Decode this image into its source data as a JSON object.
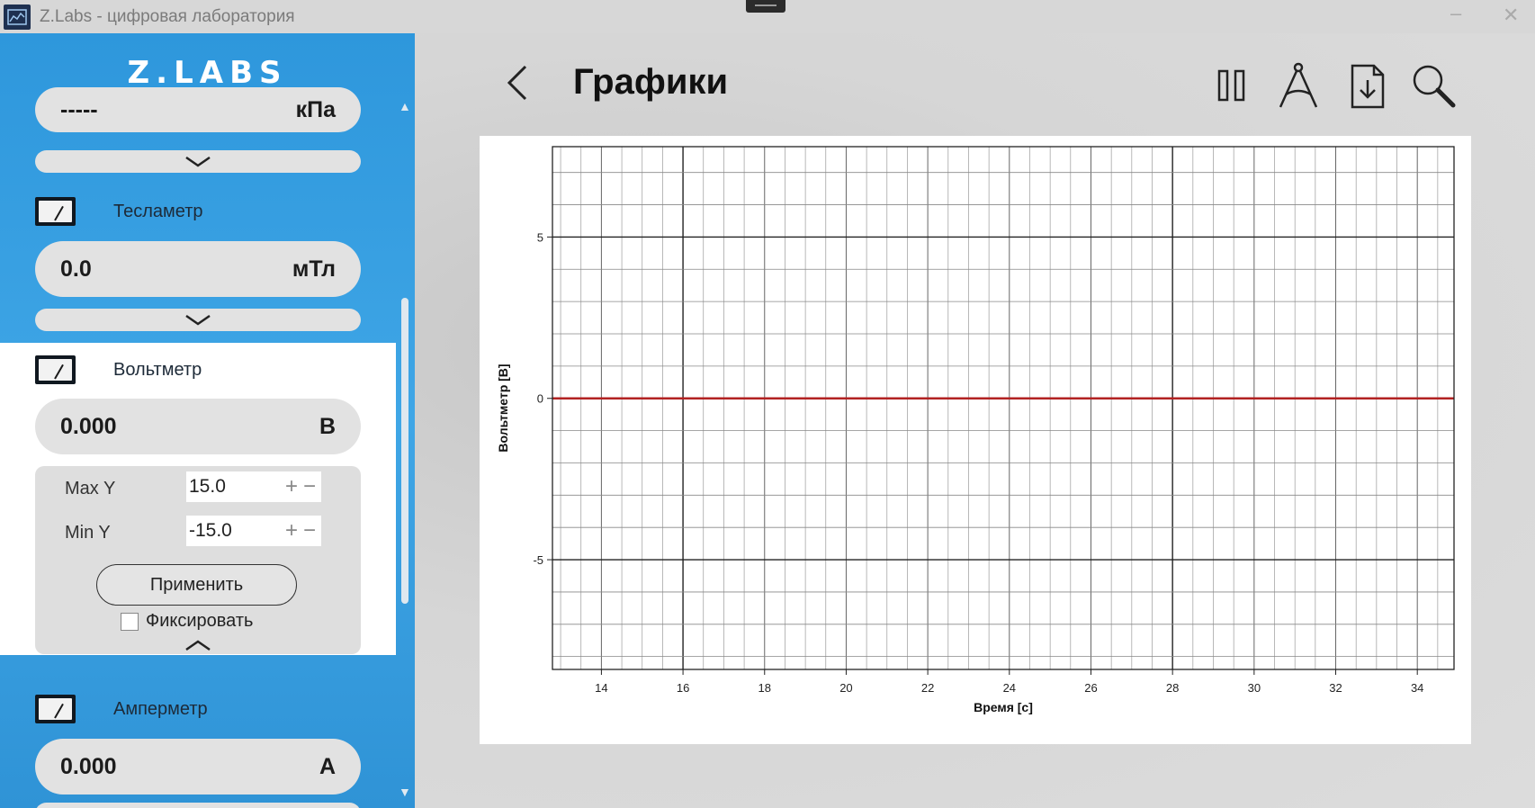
{
  "window": {
    "title": "Z.Labs - цифровая лаборатория",
    "minimize_glyph": "–",
    "close_glyph": "✕"
  },
  "sidebar": {
    "logo": "Z.LABS",
    "pressure": {
      "value": "-----",
      "unit": "кПа"
    },
    "teslameter": {
      "label": "Тесламетр",
      "value": "0.0",
      "unit": "мТл",
      "icon": "gauge-icon"
    },
    "voltmeter": {
      "label": "Вольтметр",
      "value": "0.000",
      "unit": "В",
      "icon": "gauge-icon",
      "settings": {
        "max_label": "Max Y",
        "max_value": "15.0",
        "min_label": "Min Y",
        "min_value": "-15.0",
        "apply_label": "Применить",
        "fix_label": "Фиксировать",
        "fix_checked": false
      }
    },
    "ammeter": {
      "label": "Амперметр",
      "value": "0.000",
      "unit": "А",
      "icon": "gauge-icon"
    }
  },
  "main": {
    "title": "Графики",
    "tools": [
      "pause-icon",
      "compass-icon",
      "export-icon",
      "zoom-icon"
    ]
  },
  "chart_data": {
    "type": "line",
    "title": "",
    "xlabel": "Время [с]",
    "ylabel": "Вольтметр [В]",
    "xlim": [
      12.8,
      34.9
    ],
    "ylim": [
      -8.4,
      7.8
    ],
    "xticks": [
      14,
      16,
      18,
      20,
      22,
      24,
      26,
      28,
      30,
      32,
      34
    ],
    "yticks": [
      -5,
      0,
      5
    ],
    "grid": true,
    "series": [
      {
        "color": "#b22222",
        "x": [
          12.8,
          34.9
        ],
        "y": [
          0,
          0
        ]
      }
    ]
  }
}
